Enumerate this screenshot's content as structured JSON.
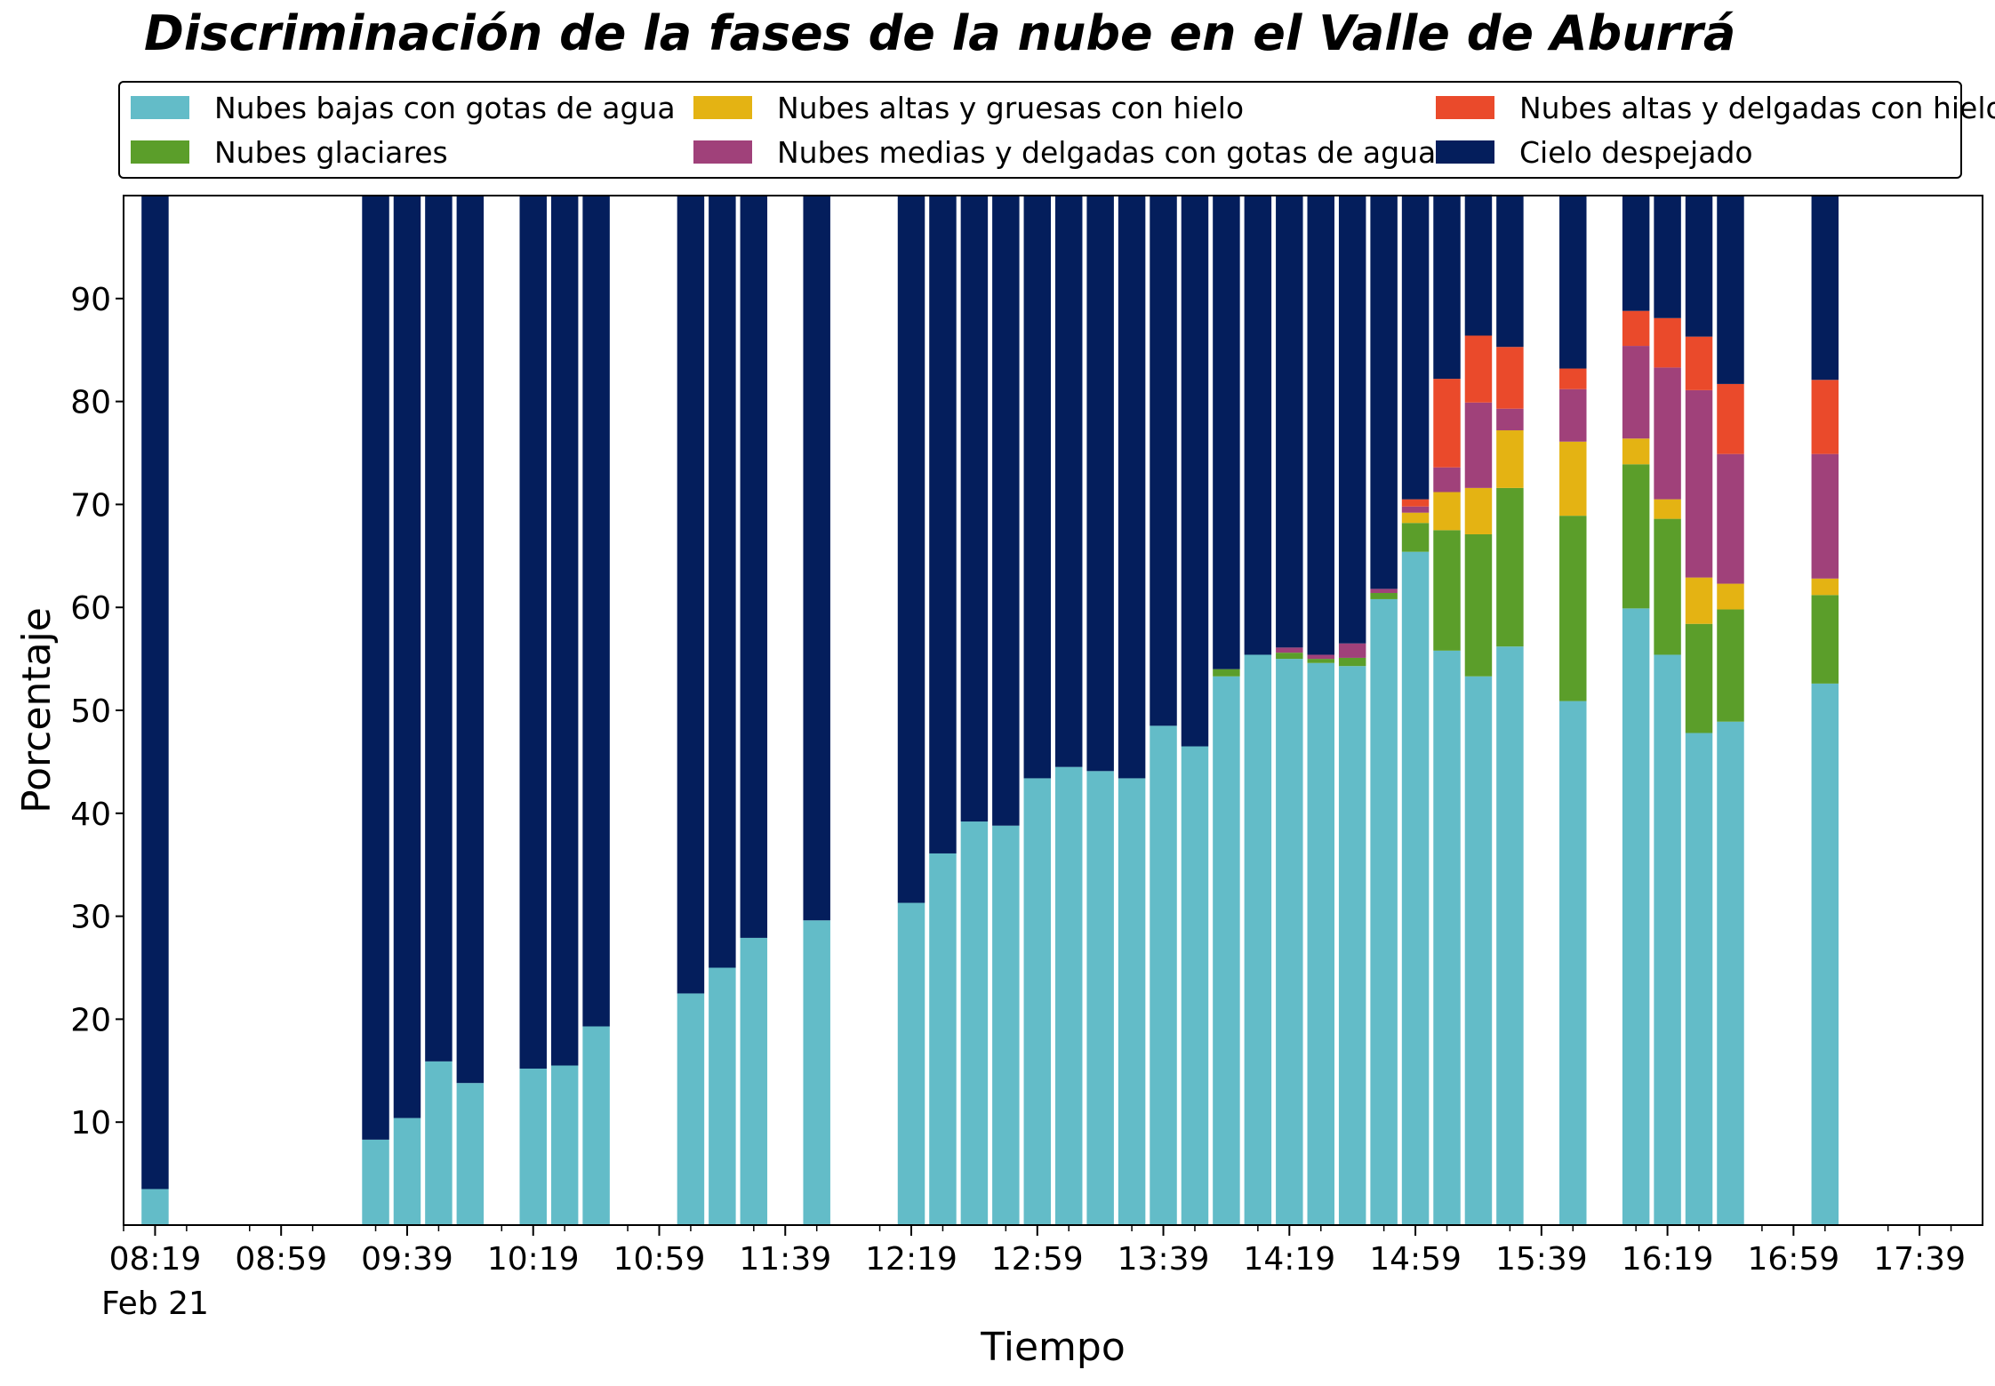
{
  "chart_data": {
    "type": "bar",
    "stacked": true,
    "title": "Discriminación de la fases de la nube en el Valle de Aburrá",
    "xlabel": "Tiempo",
    "ylabel": "Porcentaje",
    "ylim": [
      0,
      100
    ],
    "yticks": [
      10,
      20,
      30,
      40,
      50,
      60,
      70,
      80,
      90
    ],
    "xtick_labels": [
      "08:19",
      "08:59",
      "09:39",
      "10:19",
      "10:59",
      "11:39",
      "12:19",
      "12:59",
      "13:39",
      "14:19",
      "14:59",
      "15:39",
      "16:19",
      "16:59",
      "17:39"
    ],
    "xtick_sublabel": "Feb 21",
    "grid": false,
    "legend_position": "top",
    "x": [
      "08:19",
      "09:29",
      "09:39",
      "09:49",
      "09:59",
      "10:19",
      "10:29",
      "10:39",
      "11:09",
      "11:19",
      "11:29",
      "11:49",
      "12:19",
      "12:29",
      "12:39",
      "12:49",
      "12:59",
      "13:09",
      "13:19",
      "13:29",
      "13:39",
      "13:49",
      "13:59",
      "14:09",
      "14:19",
      "14:29",
      "14:39",
      "14:49",
      "14:59",
      "15:09",
      "15:19",
      "15:29",
      "15:49",
      "16:09",
      "16:19",
      "16:29",
      "16:39",
      "17:09",
      "17:19",
      "17:29",
      "17:39",
      "17:49"
    ],
    "series": [
      {
        "name": "Nubes bajas con gotas de agua",
        "color": "#63bcc8",
        "values": [
          3.5,
          8.3,
          10.4,
          15.9,
          13.8,
          15.2,
          15.5,
          19.3,
          22.5,
          25.0,
          27.9,
          29.6,
          31.3,
          36.1,
          39.2,
          38.8,
          43.4,
          44.5,
          44.1,
          43.4,
          48.5,
          46.5,
          53.3,
          55.4,
          55.0,
          54.6,
          54.3,
          60.8,
          65.4,
          55.8,
          53.3,
          56.2,
          50.9,
          59.9,
          55.4,
          47.8,
          48.9,
          52.6,
          0,
          0,
          0,
          0
        ]
      },
      {
        "name": "Nubes glaciares",
        "color": "#5b9e2a",
        "values": [
          0,
          0,
          0,
          0,
          0,
          0,
          0,
          0,
          0,
          0,
          0,
          0,
          0,
          0,
          0,
          0,
          0,
          0,
          0,
          0,
          0,
          0,
          0.7,
          0,
          0.6,
          0.4,
          0.8,
          0.6,
          2.8,
          11.7,
          13.8,
          15.4,
          18.0,
          14.0,
          13.2,
          10.6,
          10.9,
          8.6,
          0,
          0,
          0,
          0
        ]
      },
      {
        "name": "Nubes altas y gruesas con hielo",
        "color": "#e4b313",
        "values": [
          0,
          0,
          0,
          0,
          0,
          0,
          0,
          0,
          0,
          0,
          0,
          0,
          0,
          0,
          0,
          0,
          0,
          0,
          0,
          0,
          0,
          0,
          0,
          0,
          0,
          0,
          0,
          0,
          1.0,
          3.7,
          4.5,
          5.6,
          7.2,
          2.5,
          1.9,
          4.5,
          2.5,
          1.6,
          0,
          0,
          0,
          0
        ]
      },
      {
        "name": "Nubes medias y delgadas con gotas de agua",
        "color": "#a0417a",
        "values": [
          0,
          0,
          0,
          0,
          0,
          0,
          0,
          0,
          0,
          0,
          0,
          0,
          0,
          0,
          0,
          0,
          0,
          0,
          0,
          0,
          0,
          0,
          0,
          0,
          0.5,
          0.4,
          1.4,
          0.4,
          0.6,
          2.4,
          8.3,
          2.1,
          5.1,
          9.0,
          12.8,
          18.2,
          12.6,
          12.1,
          0,
          0,
          0,
          0
        ]
      },
      {
        "name": "Nubes altas y delgadas con hielo",
        "color": "#ea4a2b",
        "values": [
          0,
          0,
          0,
          0,
          0,
          0,
          0,
          0,
          0,
          0,
          0,
          0,
          0,
          0,
          0,
          0,
          0,
          0,
          0,
          0,
          0,
          0,
          0,
          0,
          0,
          0,
          0,
          0,
          0.7,
          8.6,
          6.5,
          6.0,
          2.0,
          3.4,
          4.8,
          5.2,
          6.8,
          7.2,
          0,
          0,
          0,
          0
        ]
      },
      {
        "name": "Cielo despejado",
        "color": "#041e5c",
        "values": [
          96.5,
          91.7,
          89.6,
          84.1,
          86.2,
          84.8,
          84.5,
          80.7,
          77.5,
          75.0,
          72.1,
          70.4,
          68.7,
          63.9,
          60.8,
          61.2,
          56.6,
          55.5,
          55.9,
          56.6,
          51.5,
          53.5,
          46.0,
          44.6,
          43.9,
          44.6,
          43.5,
          38.2,
          29.5,
          17.8,
          13.7,
          14.7,
          16.8,
          11.2,
          11.9,
          13.7,
          18.3,
          17.9,
          0,
          0,
          0,
          0
        ]
      }
    ]
  }
}
